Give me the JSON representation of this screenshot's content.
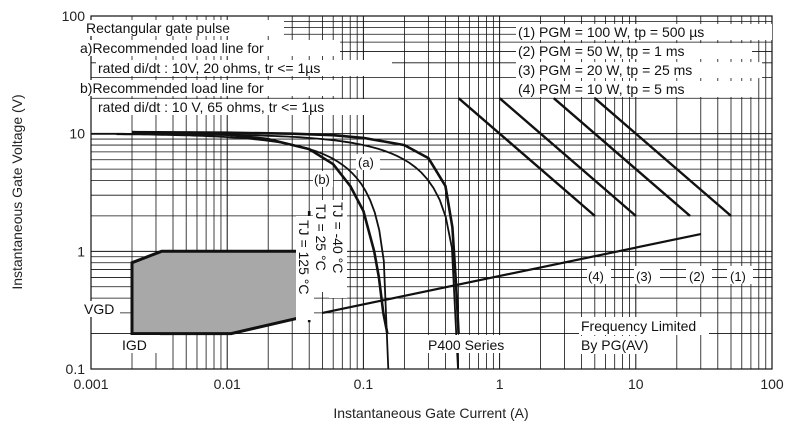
{
  "chart_data": {
    "type": "line",
    "xlabel": "Instantaneous Gate Current (A)",
    "ylabel": "Instantaneous Gate Voltage (V)",
    "xscale": "log",
    "yscale": "log",
    "xlim": [
      0.001,
      100
    ],
    "ylim": [
      0.1,
      100
    ],
    "grid": "log-minor",
    "xtick_labels": [
      "0.001",
      "0.01",
      "0.1",
      "1",
      "10",
      "100"
    ],
    "ytick_labels": [
      "0.1",
      "1",
      "10",
      "100"
    ],
    "notes": [
      "Rectangular gate pulse",
      "a)Recommended load line for",
      "rated di/dt : 10V, 20 ohms, tr <= 1µs",
      "b)Recommended load line for",
      "rated di/dt : 10 V, 65 ohms, tr <= 1µs"
    ],
    "pulse_legend": [
      "(1) PGM = 100 W, tp = 500  µs",
      "(2) PGM = 50 W, tp = 1 ms",
      "(3) PGM = 20 W, tp = 25 ms",
      "(4) PGM = 10 W, tp = 5 ms"
    ],
    "series": [
      {
        "name": "(a)",
        "x": [
          0.001,
          0.5
        ],
        "y": [
          10,
          0
        ]
      },
      {
        "name": "(b)",
        "x": [
          0.00154,
          0.154
        ],
        "y": [
          10,
          0
        ]
      },
      {
        "name": "TJ = -40 °C",
        "x": [
          0.002,
          0.01,
          0.03,
          0.06,
          0.1,
          0.2,
          0.3,
          0.4,
          0.45,
          0.48,
          0.5
        ],
        "y": [
          10.3,
          10.2,
          10.0,
          9.7,
          9.2,
          8.0,
          6.2,
          3.6,
          1.6,
          0.5,
          0.2
        ]
      },
      {
        "name": "TJ = 25 °C",
        "x": [
          0.002,
          0.01,
          0.02,
          0.04,
          0.06,
          0.08,
          0.1,
          0.12,
          0.13,
          0.14,
          0.15
        ],
        "y": [
          10.3,
          9.8,
          9.0,
          7.4,
          5.5,
          3.6,
          2.2,
          1.0,
          0.6,
          0.3,
          0.2
        ]
      },
      {
        "name": "TJ = 125 °C",
        "x": [
          0.04,
          0.04
        ],
        "y": [
          2.2,
          0.25
        ]
      },
      {
        "name": "(1)",
        "x": [
          5.0,
          50
        ],
        "y": [
          20,
          2.0
        ]
      },
      {
        "name": "(2)",
        "x": [
          2.5,
          25
        ],
        "y": [
          20,
          2.0
        ]
      },
      {
        "name": "(3)",
        "x": [
          1.0,
          10
        ],
        "y": [
          20,
          2.0
        ]
      },
      {
        "name": "(4)",
        "x": [
          0.5,
          5.0
        ],
        "y": [
          20,
          2.0
        ]
      },
      {
        "name": "PG(AV)",
        "x": [
          0.05,
          30
        ],
        "y": [
          0.3,
          1.4
        ]
      }
    ],
    "gate_region": {
      "x": [
        0.002,
        0.002,
        0.0033,
        0.033,
        0.033,
        0.0107,
        0.002
      ],
      "y": [
        0.2,
        0.8,
        1.0,
        1.0,
        0.27,
        0.2,
        0.2
      ]
    },
    "annotations": [
      "(a)",
      "(b)",
      "TJ = -40 °C",
      "TJ = 25 °C",
      "TJ = 125 °C",
      "VGD",
      "IGD",
      "P400 Series",
      "Frequency Limited",
      "By PG(AV)",
      "(4)",
      "(3)",
      "(2)",
      "(1)"
    ]
  }
}
